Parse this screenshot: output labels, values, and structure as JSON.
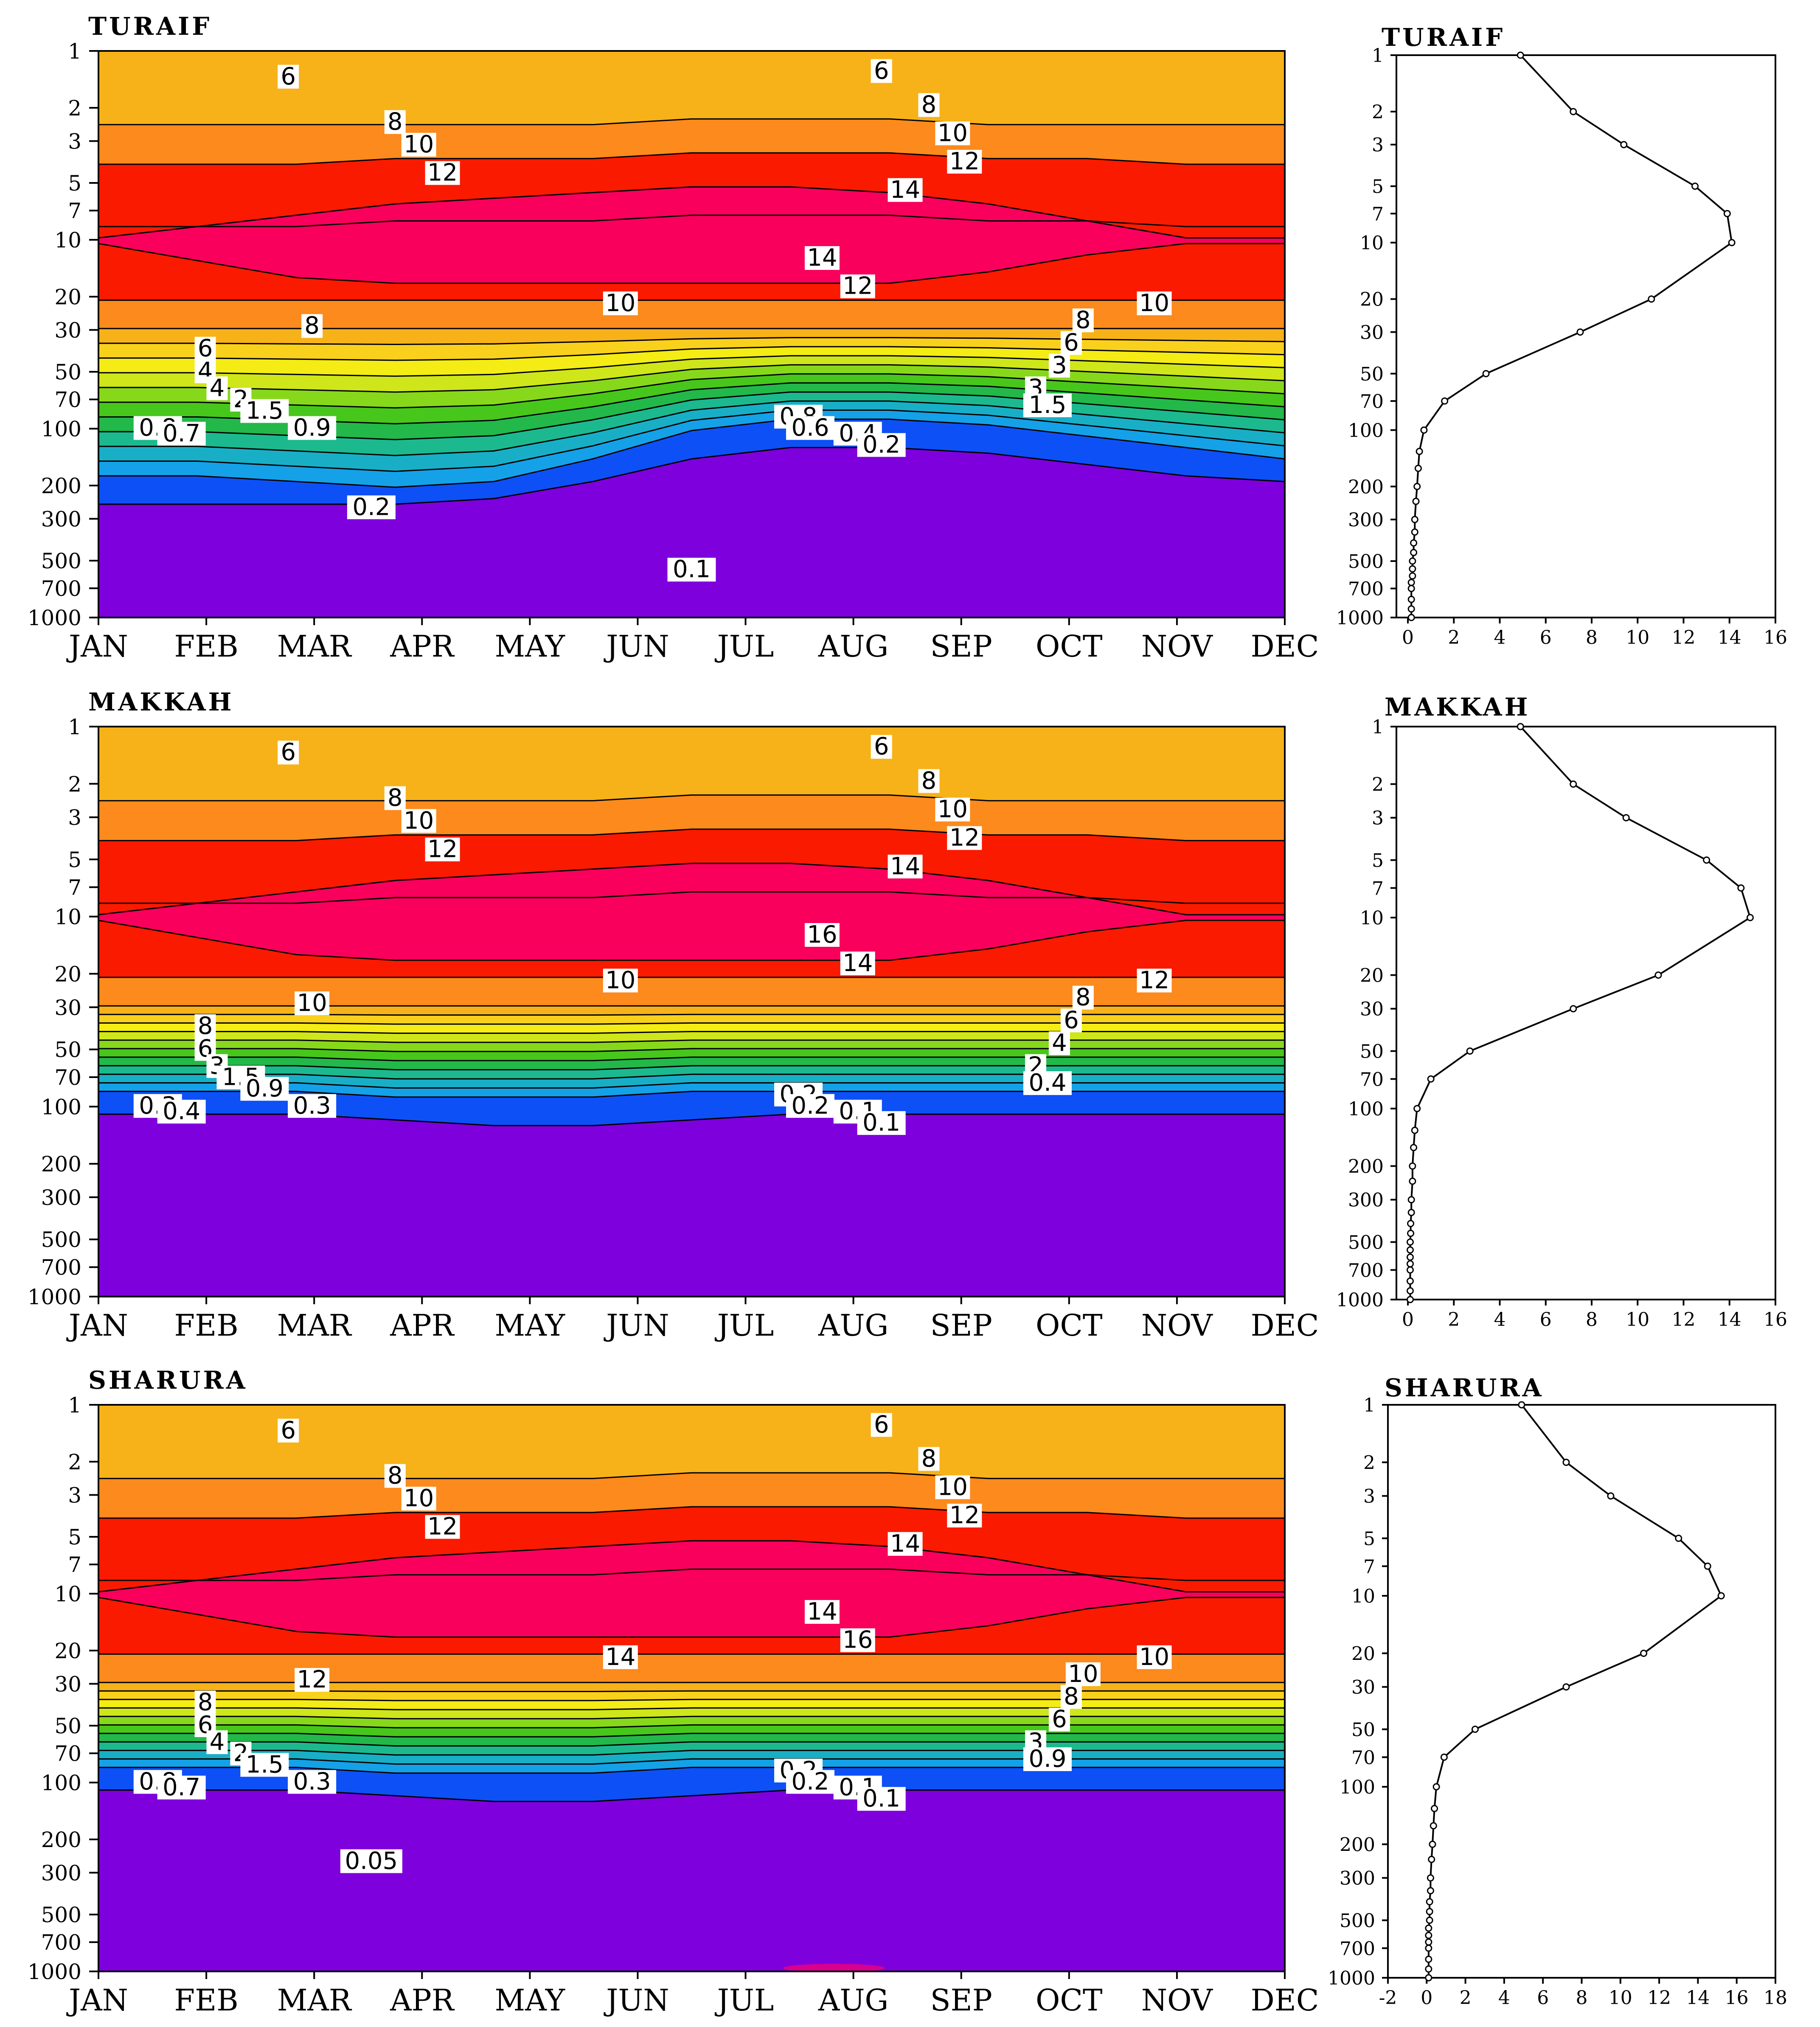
{
  "colors": {
    "band6": "#f7b219",
    "band8": "#fc8a1c",
    "band10": "#fa1a00",
    "band14": "#f8005c",
    "y1": "#f9d11c",
    "y2": "#f4ec14",
    "g1": "#cfe61a",
    "g2": "#87d81b",
    "g3": "#47c71b",
    "g4": "#23b84a",
    "t1": "#1cb98f",
    "t2": "#18afc6",
    "b1": "#14a1e8",
    "b2": "#0d50f6",
    "purple": "#7e00dd",
    "magenta": "#d70090"
  },
  "chart_data": [
    {
      "type": "heatmap",
      "title": "TURAIF",
      "x": [
        "JAN",
        "FEB",
        "MAR",
        "APR",
        "MAY",
        "JUN",
        "JUL",
        "AUG",
        "SEP",
        "OCT",
        "NOV",
        "DEC"
      ],
      "y_ticks": [
        "1",
        "2",
        "3",
        "5",
        "7",
        "10",
        "20",
        "30",
        "50",
        "70",
        "100",
        "200",
        "300",
        "500",
        "700",
        "1000"
      ],
      "contour_labels": [
        "6",
        "6",
        "8",
        "8",
        "10",
        "10",
        "12",
        "12",
        "14",
        "14",
        "12",
        "10",
        "10",
        "8",
        "8",
        "6",
        "6",
        "4",
        "3",
        "4",
        "3",
        "2",
        "1.5",
        "1.5",
        "0.8",
        "0.7",
        "0.9",
        "0.8",
        "0.6",
        "0.4",
        "0.2",
        "0.2",
        "0.1"
      ]
    },
    {
      "type": "line",
      "title": "TURAIF",
      "x": [
        4.9,
        7.2,
        9.4,
        12.5,
        13.9,
        14.1,
        10.6,
        7.5,
        3.4,
        1.6,
        0.7,
        0.5,
        0.45,
        0.4,
        0.35,
        0.3,
        0.3,
        0.25,
        0.25,
        0.2,
        0.2,
        0.2,
        0.15,
        0.15,
        0.15,
        0.15,
        0.15
      ],
      "y": [
        1,
        2,
        3,
        5,
        7,
        10,
        20,
        30,
        50,
        70,
        100,
        130,
        160,
        200,
        240,
        300,
        350,
        400,
        450,
        500,
        550,
        600,
        650,
        700,
        800,
        900,
        1000
      ],
      "x_ticks": [
        "0",
        "2",
        "4",
        "6",
        "8",
        "10",
        "12",
        "14",
        "16"
      ],
      "y_ticks": [
        "1",
        "2",
        "3",
        "5",
        "7",
        "10",
        "20",
        "30",
        "50",
        "70",
        "100",
        "200",
        "300",
        "500",
        "700",
        "1000"
      ],
      "xlim": [
        -0.5,
        16
      ],
      "ylim": [
        1,
        1000
      ]
    },
    {
      "type": "heatmap",
      "title": "MAKKAH",
      "x": [
        "JAN",
        "FEB",
        "MAR",
        "APR",
        "MAY",
        "JUN",
        "JUL",
        "AUG",
        "SEP",
        "OCT",
        "NOV",
        "DEC"
      ],
      "y_ticks": [
        "1",
        "2",
        "3",
        "5",
        "7",
        "10",
        "20",
        "30",
        "50",
        "70",
        "100",
        "200",
        "300",
        "500",
        "700",
        "1000"
      ],
      "contour_labels": [
        "6",
        "6",
        "8",
        "8",
        "10",
        "10",
        "12",
        "12",
        "14",
        "16",
        "14",
        "10",
        "12",
        "10",
        "8",
        "8",
        "6",
        "6",
        "4",
        "3",
        "2",
        "1.5",
        "0.9",
        "0.4",
        "0.3",
        "0.4",
        "0.3",
        "0.2",
        "0.2",
        "0.1",
        "0.1"
      ]
    },
    {
      "type": "line",
      "title": "MAKKAH",
      "x": [
        4.9,
        7.2,
        9.5,
        13.0,
        14.5,
        14.9,
        10.9,
        7.2,
        2.7,
        1.0,
        0.4,
        0.3,
        0.25,
        0.2,
        0.2,
        0.15,
        0.15,
        0.12,
        0.12,
        0.1,
        0.1,
        0.1,
        0.1,
        0.1,
        0.1,
        0.1,
        0.1
      ],
      "y": [
        1,
        2,
        3,
        5,
        7,
        10,
        20,
        30,
        50,
        70,
        100,
        130,
        160,
        200,
        240,
        300,
        350,
        400,
        450,
        500,
        550,
        600,
        650,
        700,
        800,
        900,
        1000
      ],
      "x_ticks": [
        "0",
        "2",
        "4",
        "6",
        "8",
        "10",
        "12",
        "14",
        "16"
      ],
      "y_ticks": [
        "1",
        "2",
        "3",
        "5",
        "7",
        "10",
        "20",
        "30",
        "50",
        "70",
        "100",
        "200",
        "300",
        "500",
        "700",
        "1000"
      ],
      "xlim": [
        -0.5,
        16
      ],
      "ylim": [
        1,
        1000
      ]
    },
    {
      "type": "heatmap",
      "title": "SHARURA",
      "x": [
        "JAN",
        "FEB",
        "MAR",
        "APR",
        "MAY",
        "JUN",
        "JUL",
        "AUG",
        "SEP",
        "OCT",
        "NOV",
        "DEC"
      ],
      "y_ticks": [
        "1",
        "2",
        "3",
        "5",
        "7",
        "10",
        "20",
        "30",
        "50",
        "70",
        "100",
        "200",
        "300",
        "500",
        "700",
        "1000"
      ],
      "contour_labels": [
        "6",
        "6",
        "8",
        "8",
        "10",
        "10",
        "12",
        "12",
        "14",
        "14",
        "16",
        "14",
        "10",
        "12",
        "10",
        "8",
        "8",
        "6",
        "6",
        "4",
        "3",
        "2",
        "1.5",
        "0.9",
        "0.8",
        "0.7",
        "0.3",
        "0.2",
        "0.2",
        "0.1",
        "0.1",
        "0.05"
      ]
    },
    {
      "type": "line",
      "title": "SHARURA",
      "x": [
        4.9,
        7.2,
        9.5,
        13.0,
        14.5,
        15.2,
        11.2,
        7.2,
        2.5,
        0.9,
        0.5,
        0.4,
        0.35,
        0.3,
        0.25,
        0.2,
        0.2,
        0.15,
        0.15,
        0.15,
        0.1,
        0.1,
        0.1,
        0.1,
        0.1,
        0.1,
        0.1
      ],
      "y": [
        1,
        2,
        3,
        5,
        7,
        10,
        20,
        30,
        50,
        70,
        100,
        130,
        160,
        200,
        240,
        300,
        350,
        400,
        450,
        500,
        550,
        600,
        650,
        700,
        800,
        900,
        1000
      ],
      "x_ticks": [
        "-2",
        "0",
        "2",
        "4",
        "6",
        "8",
        "10",
        "12",
        "14",
        "16",
        "18"
      ],
      "y_ticks": [
        "1",
        "2",
        "3",
        "5",
        "7",
        "10",
        "20",
        "30",
        "50",
        "70",
        "100",
        "200",
        "300",
        "500",
        "700",
        "1000"
      ],
      "xlim": [
        -2,
        18
      ],
      "ylim": [
        1,
        1000
      ]
    }
  ]
}
